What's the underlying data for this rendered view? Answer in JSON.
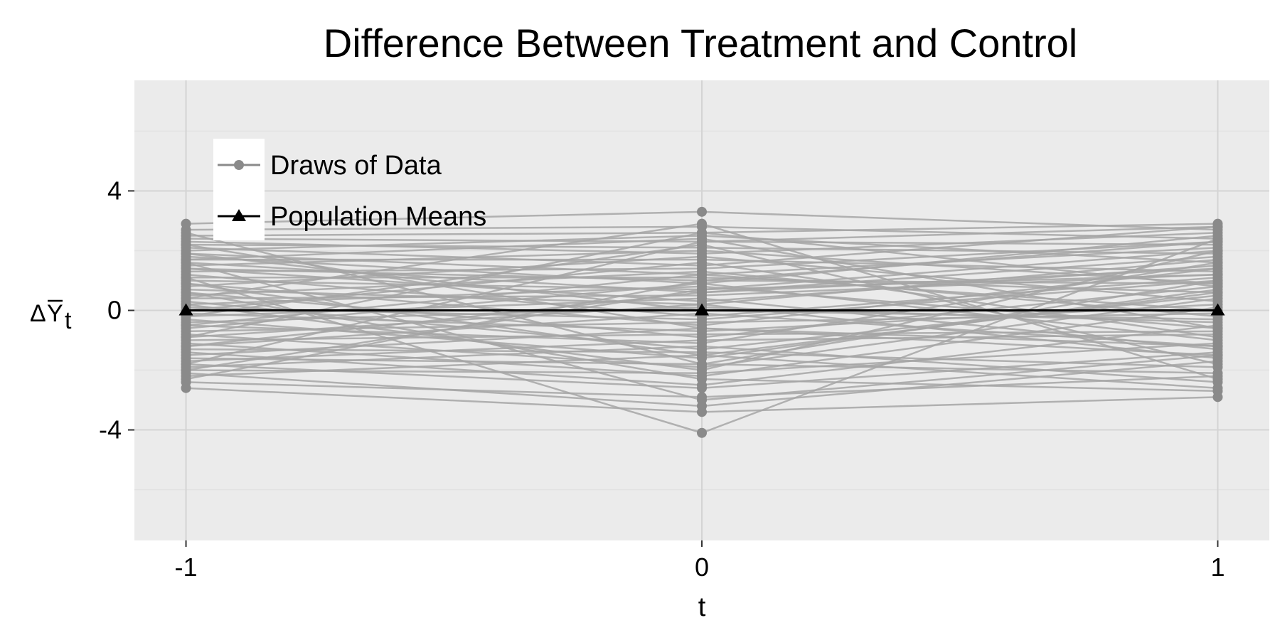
{
  "chart_data": {
    "type": "line",
    "title": "Difference Between Treatment and Control",
    "xlabel": "t",
    "ylabel": {
      "prefix": "Δ",
      "main": "Y",
      "subscript": "t",
      "overline": true
    },
    "x": [
      -1,
      0,
      1
    ],
    "xticks": [
      "-1",
      "0",
      "1"
    ],
    "yticks": [
      "-4",
      "0",
      "4"
    ],
    "xlim": [
      -1.1,
      1.1
    ],
    "ylim": [
      -7.7,
      7.7
    ],
    "grid": true,
    "legend_position": "top-left",
    "legend": {
      "draws_label": "Draws of Data",
      "means_label": "Population Means"
    },
    "colors": {
      "panel": "#ebebeb",
      "grid_major": "#d4d4d4",
      "grid_minor": "#e2e2e2",
      "draw_line": "#a6a6a6",
      "draw_point": "#8a8a8a",
      "mean_line": "#000000"
    },
    "series": [
      {
        "name": "Population Means",
        "values": [
          0,
          0,
          0
        ]
      },
      {
        "name": "Draws of Data",
        "draws": [
          [
            2.9,
            3.3,
            2.7
          ],
          [
            2.7,
            2.8,
            2.4
          ],
          [
            2.5,
            2.6,
            2.9
          ],
          [
            2.4,
            2.3,
            2.2
          ],
          [
            2.3,
            1.9,
            2.6
          ],
          [
            2.2,
            2.1,
            1.9
          ],
          [
            2.1,
            1.5,
            2.8
          ],
          [
            2.0,
            2.5,
            1.6
          ],
          [
            1.9,
            1.2,
            2.1
          ],
          [
            1.8,
            0.9,
            2.5
          ],
          [
            1.7,
            1.7,
            1.3
          ],
          [
            1.6,
            0.6,
            1.8
          ],
          [
            1.5,
            2.0,
            0.9
          ],
          [
            1.4,
            0.3,
            1.5
          ],
          [
            1.3,
            1.4,
            2.3
          ],
          [
            1.2,
            -0.2,
            1.1
          ],
          [
            1.1,
            1.1,
            0.6
          ],
          [
            1.0,
            0.7,
            2.0
          ],
          [
            0.9,
            -0.5,
            1.4
          ],
          [
            0.8,
            1.8,
            0.3
          ],
          [
            0.7,
            0.2,
            1.7
          ],
          [
            0.6,
            -0.9,
            0.8
          ],
          [
            0.5,
            1.3,
            -0.2
          ],
          [
            0.4,
            0.5,
            1.2
          ],
          [
            0.3,
            -1.3,
            0.5
          ],
          [
            0.2,
            0.8,
            -0.6
          ],
          [
            0.1,
            -0.3,
            1.0
          ],
          [
            0.0,
            1.6,
            -0.9
          ],
          [
            -0.1,
            -0.7,
            0.2
          ],
          [
            -0.2,
            0.4,
            -1.3
          ],
          [
            -0.3,
            -1.6,
            0.7
          ],
          [
            -0.4,
            0.1,
            -0.4
          ],
          [
            -0.5,
            -1.1,
            1.6
          ],
          [
            -0.6,
            0.9,
            -1.0
          ],
          [
            -0.7,
            -0.4,
            -0.1
          ],
          [
            -0.8,
            -1.9,
            0.4
          ],
          [
            -0.9,
            0.2,
            -1.6
          ],
          [
            -1.0,
            -0.8,
            -0.7
          ],
          [
            -1.1,
            -2.2,
            0.1
          ],
          [
            -1.2,
            -0.1,
            -1.2
          ],
          [
            -1.3,
            -1.4,
            -1.9
          ],
          [
            -1.4,
            -2.5,
            -0.5
          ],
          [
            -1.5,
            -0.6,
            -1.5
          ],
          [
            -1.6,
            -1.8,
            -2.1
          ],
          [
            -1.7,
            -1.0,
            -0.8
          ],
          [
            -1.8,
            -2.6,
            -1.4
          ],
          [
            -1.9,
            -1.2,
            -2.4
          ],
          [
            -2.0,
            -2.1,
            -1.1
          ],
          [
            -2.1,
            -3.2,
            -1.7
          ],
          [
            -2.2,
            -1.5,
            -2.6
          ],
          [
            -2.4,
            -2.9,
            -2.2
          ],
          [
            -2.6,
            -3.4,
            -2.9
          ],
          [
            1.1,
            -4.1,
            2.4
          ],
          [
            -1.8,
            2.3,
            2.8
          ],
          [
            1.6,
            -3.0,
            -1.5
          ],
          [
            0.4,
            2.9,
            -2.3
          ],
          [
            -0.9,
            2.6,
            0.8
          ],
          [
            2.6,
            -1.8,
            1.0
          ],
          [
            -2.3,
            1.0,
            2.3
          ],
          [
            0.6,
            -2.3,
            -2.7
          ],
          [
            1.9,
            0.0,
            -0.3
          ],
          [
            -0.5,
            1.2,
            0.0
          ],
          [
            0.9,
            -1.5,
            0.6
          ],
          [
            -1.2,
            0.6,
            1.4
          ],
          [
            2.2,
            -0.6,
            -1.2
          ],
          [
            -0.2,
            2.2,
            -1.8
          ],
          [
            1.4,
            1.0,
            0.9
          ],
          [
            -2.0,
            0.7,
            1.2
          ],
          [
            0.2,
            -2.0,
            2.0
          ],
          [
            1.7,
            2.4,
            -0.6
          ]
        ]
      }
    ]
  }
}
